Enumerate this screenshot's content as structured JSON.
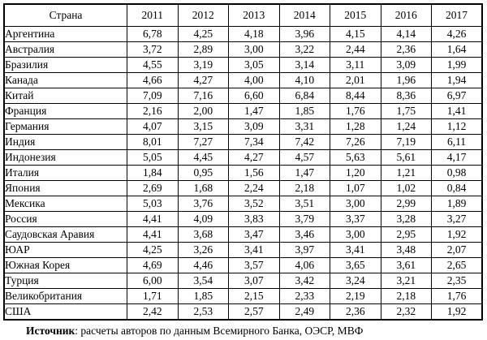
{
  "table": {
    "columns": [
      "Страна",
      "2011",
      "2012",
      "2013",
      "2014",
      "2015",
      "2016",
      "2017"
    ],
    "rows": [
      {
        "country": "Аргентина",
        "values": [
          "6,78",
          "4,25",
          "4,18",
          "3,96",
          "4,15",
          "4,14",
          "4,26"
        ]
      },
      {
        "country": "Австралия",
        "values": [
          "3,72",
          "2,89",
          "3,00",
          "3,22",
          "2,44",
          "2,36",
          "1,64"
        ]
      },
      {
        "country": "Бразилия",
        "values": [
          "4,55",
          "3,19",
          "3,05",
          "3,14",
          "3,11",
          "3,09",
          "1,99"
        ]
      },
      {
        "country": "Канада",
        "values": [
          "4,66",
          "4,27",
          "4,00",
          "4,10",
          "2,01",
          "1,96",
          "1,94"
        ]
      },
      {
        "country": "Китай",
        "values": [
          "7,09",
          "7,16",
          "6,60",
          "6,84",
          "8,44",
          "8,36",
          "6,97"
        ]
      },
      {
        "country": "Франция",
        "values": [
          "2,16",
          "2,00",
          "1,47",
          "1,85",
          "1,76",
          "1,75",
          "1,41"
        ]
      },
      {
        "country": "Германия",
        "values": [
          "4,07",
          "3,15",
          "3,09",
          "3,31",
          "1,28",
          "1,24",
          "1,12"
        ]
      },
      {
        "country": "Индия",
        "values": [
          "8,01",
          "7,27",
          "7,34",
          "7,42",
          "7,26",
          "7,19",
          "6,11"
        ]
      },
      {
        "country": "Индонезия",
        "values": [
          "5,05",
          "4,45",
          "4,27",
          "4,57",
          "5,63",
          "5,61",
          "4,17"
        ]
      },
      {
        "country": "Италия",
        "values": [
          "1,84",
          "0,95",
          "1,56",
          "1,47",
          "1,20",
          "1,21",
          "0,98"
        ]
      },
      {
        "country": "Япония",
        "values": [
          "2,69",
          "1,68",
          "2,24",
          "2,18",
          "1,07",
          "1,02",
          "0,84"
        ]
      },
      {
        "country": "Мексика",
        "values": [
          "5,03",
          "3,76",
          "3,52",
          "3,51",
          "3,00",
          "2,99",
          "1,89"
        ]
      },
      {
        "country": "Россия",
        "values": [
          "4,41",
          "4,09",
          "3,83",
          "3,79",
          "3,37",
          "3,28",
          "3,27"
        ]
      },
      {
        "country": "Саудовская Аравия",
        "values": [
          "4,41",
          "3,68",
          "3,47",
          "3,46",
          "3,00",
          "2,95",
          "1,92"
        ]
      },
      {
        "country": "ЮАР",
        "values": [
          "4,25",
          "3,26",
          "3,41",
          "3,97",
          "3,41",
          "3,48",
          "2,07"
        ]
      },
      {
        "country": "Южная Корея",
        "values": [
          "4,69",
          "4,46",
          "3,57",
          "4,06",
          "3,65",
          "3,61",
          "2,65"
        ]
      },
      {
        "country": "Турция",
        "values": [
          "6,00",
          "3,54",
          "3,07",
          "3,42",
          "3,24",
          "3,21",
          "2,35"
        ]
      },
      {
        "country": "Великобритания",
        "values": [
          "1,71",
          "1,85",
          "2,15",
          "2,33",
          "2,19",
          "2,18",
          "1,76"
        ]
      },
      {
        "country": "США",
        "values": [
          "2,42",
          "2,53",
          "2,57",
          "2,49",
          "2,36",
          "2,32",
          "1,92"
        ]
      }
    ]
  },
  "footer": {
    "source_label": "Источник",
    "source_text": ": расчеты авторов по данным Всемирного Банка, ОЭСР, МВФ"
  }
}
